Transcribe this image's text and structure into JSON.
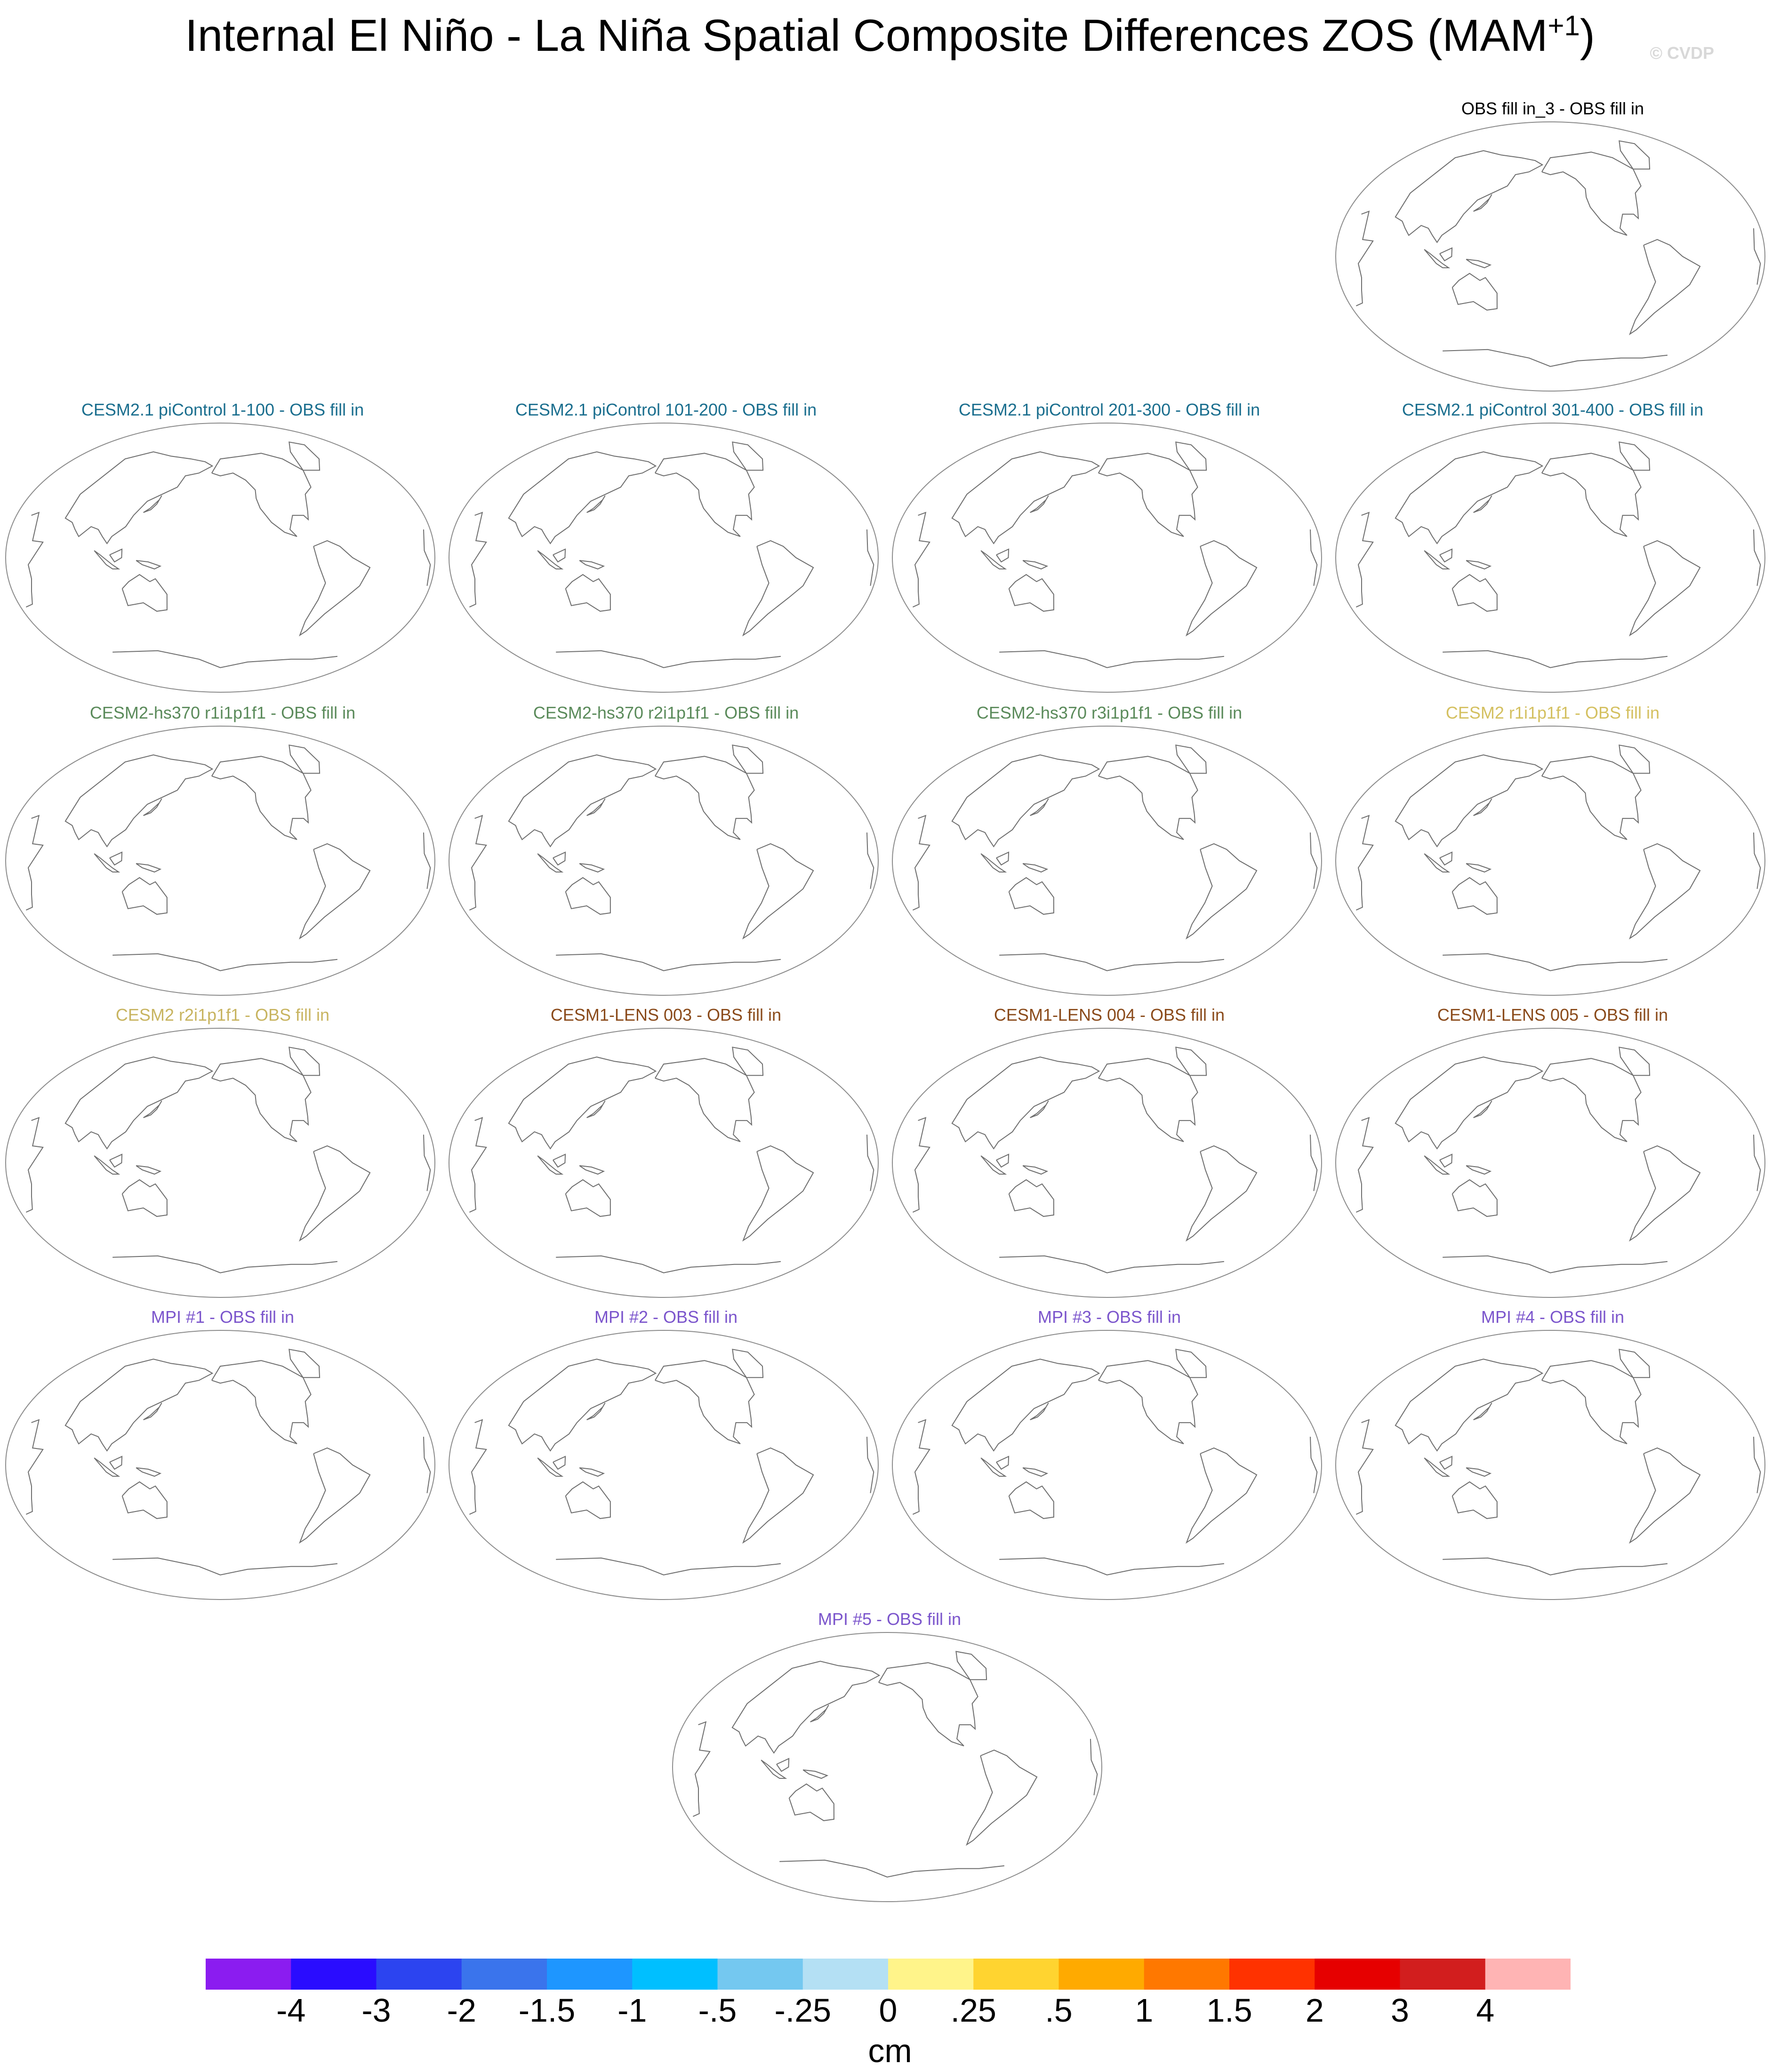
{
  "figure": {
    "title_main": "Internal El Niño - La Niña Spatial Composite Differences ZOS (MAM",
    "title_sup": "+1",
    "title_close": ")",
    "watermark": "© CVDP"
  },
  "chart_data": {
    "type": "heatmap",
    "variable": "ZOS",
    "season": "MAM+1",
    "units": "cm",
    "grid": false,
    "panels": [
      {
        "title": "OBS fill in_3 - OBS fill in",
        "color": "#000000",
        "values": []
      },
      {
        "title": "CESM2.1 piControl 1-100 - OBS fill in",
        "color": "#1a6e8e",
        "values": []
      },
      {
        "title": "CESM2.1 piControl 101-200 - OBS fill in",
        "color": "#1a6e8e",
        "values": []
      },
      {
        "title": "CESM2.1 piControl 201-300 - OBS fill in",
        "color": "#1a6e8e",
        "values": []
      },
      {
        "title": "CESM2.1 piControl 301-400 - OBS fill in",
        "color": "#1a6e8e",
        "values": []
      },
      {
        "title": "CESM2-hs370 r1i1p1f1 - OBS fill in",
        "color": "#5a8a5a",
        "values": []
      },
      {
        "title": "CESM2-hs370 r2i1p1f1 - OBS fill in",
        "color": "#5a8a5a",
        "values": []
      },
      {
        "title": "CESM2-hs370 r3i1p1f1 - OBS fill in",
        "color": "#5a8a5a",
        "values": []
      },
      {
        "title": "CESM2 r1i1p1f1 - OBS fill in",
        "color": "#d4c060",
        "values": []
      },
      {
        "title": "CESM2 r2i1p1f1 - OBS fill in",
        "color": "#c8b460",
        "values": []
      },
      {
        "title": "CESM1-LENS 003 - OBS fill in",
        "color": "#8a4a1a",
        "values": []
      },
      {
        "title": "CESM1-LENS 004 - OBS fill in",
        "color": "#8a4a1a",
        "values": []
      },
      {
        "title": "CESM1-LENS 005 - OBS fill in",
        "color": "#8a4a1a",
        "values": []
      },
      {
        "title": "MPI #1 - OBS fill in",
        "color": "#7b55cc",
        "values": []
      },
      {
        "title": "MPI #2 - OBS fill in",
        "color": "#7b55cc",
        "values": []
      },
      {
        "title": "MPI #3 - OBS fill in",
        "color": "#7b55cc",
        "values": []
      },
      {
        "title": "MPI #4 - OBS fill in",
        "color": "#7b55cc",
        "values": []
      },
      {
        "title": "MPI #5 - OBS fill in",
        "color": "#7b55cc",
        "values": []
      }
    ],
    "colorbar": {
      "labels": [
        "-4",
        "-3",
        "-2",
        "-1.5",
        "-1",
        "-.5",
        "-.25",
        "0",
        ".25",
        ".5",
        "1",
        "1.5",
        "2",
        "3",
        "4"
      ],
      "colors": [
        "#8b1cf0",
        "#2a0cff",
        "#2c44f0",
        "#3a74ec",
        "#1e96ff",
        "#00bfff",
        "#74c8f0",
        "#b4e0f4",
        "#fff48a",
        "#ffd430",
        "#ffaa00",
        "#ff7800",
        "#ff3200",
        "#e60000",
        "#d21e1e",
        "#ffb4b4"
      ],
      "units": "cm"
    }
  }
}
